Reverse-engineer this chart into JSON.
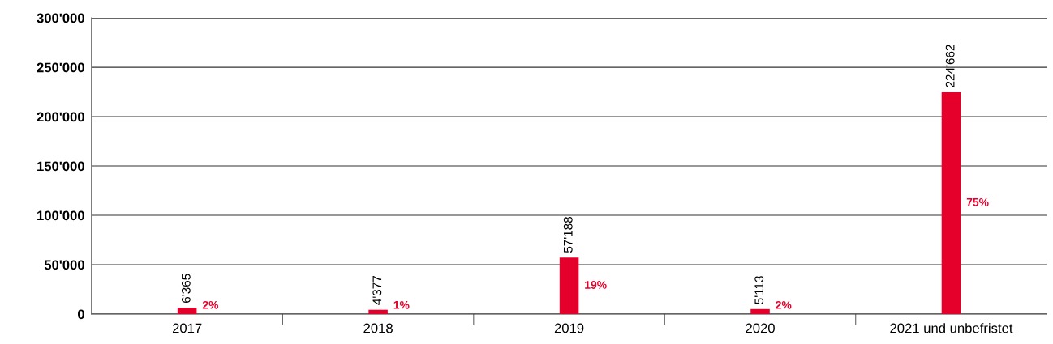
{
  "chart_data": {
    "type": "bar",
    "categories": [
      "2017",
      "2018",
      "2019",
      "2020",
      "2021 und unbefristet"
    ],
    "series": [
      {
        "color": "#e4002b",
        "values": [
          6365,
          4377,
          57188,
          5113,
          224662
        ],
        "value_labels": [
          "6'365",
          "4'377",
          "57'188",
          "5'113",
          "224'662"
        ]
      }
    ],
    "ylim": [
      0,
      300000
    ],
    "yticks": [
      {
        "value": 0,
        "label": "0"
      },
      {
        "value": 50000,
        "label": "50'000"
      },
      {
        "value": 100000,
        "label": "100'000"
      },
      {
        "value": 150000,
        "label": "150'000"
      },
      {
        "value": 200000,
        "label": "200'000"
      },
      {
        "value": 250000,
        "label": "250'000"
      },
      {
        "value": 300000,
        "label": "300'000"
      }
    ],
    "grid": "y",
    "annotations": [
      "2%",
      "1%",
      "19%",
      "2%",
      "75%"
    ]
  }
}
